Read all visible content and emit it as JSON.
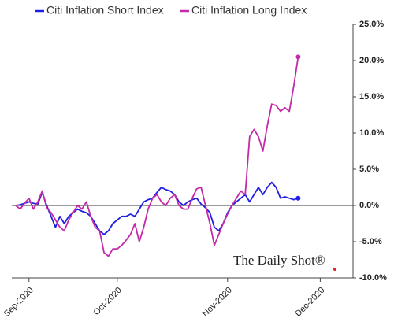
{
  "chart_data": {
    "type": "line",
    "watermark": "The Daily Shot®",
    "categories": [
      null,
      null,
      null,
      "Sep-2020",
      null,
      null,
      null,
      null,
      null,
      null,
      null,
      null,
      null,
      null,
      null,
      null,
      null,
      null,
      null,
      null,
      null,
      null,
      null,
      "Oct-2020",
      null,
      null,
      null,
      null,
      null,
      null,
      null,
      null,
      null,
      null,
      null,
      null,
      null,
      null,
      null,
      null,
      null,
      null,
      null,
      null,
      null,
      null,
      null,
      null,
      "Nov-2020",
      null,
      null,
      null,
      null,
      null,
      null,
      null,
      null,
      null,
      null,
      null,
      null,
      null,
      null,
      null,
      null,
      null,
      null,
      null,
      null,
      "Dec-2020"
    ],
    "series": [
      {
        "name": "Citi Inflation Short Index",
        "color": "#1f1fe6",
        "axis": "y2",
        "values": [
          0,
          0.1,
          0.3,
          0.5,
          0.3,
          0.2,
          1.8,
          0,
          -1.5,
          -3,
          -1.5,
          -2.5,
          -1.5,
          -1,
          -0.5,
          -0.8,
          -1,
          -1.5,
          -2.5,
          -3.5,
          -4,
          -3.5,
          -2.5,
          -2,
          -1.5,
          -1.5,
          -1.2,
          -1.5,
          -0.5,
          0.5,
          0.8,
          1,
          1.8,
          2.5,
          2.2,
          2,
          1.5,
          0.5,
          0,
          0.5,
          0.8,
          1,
          0.2,
          -0.3,
          -1,
          -3,
          -3.5,
          -2.5,
          -1,
          0,
          0.5,
          1,
          1.5,
          0.5,
          1.5,
          2.5,
          1.5,
          2.5,
          3.2,
          2.5,
          1,
          1.2,
          1,
          0.8,
          1,
          null,
          null,
          null,
          null,
          null
        ]
      },
      {
        "name": "Citi Inflation Long Index",
        "color": "#c42aa8",
        "axis": "y2",
        "values": [
          0,
          -0.5,
          0.3,
          1,
          -0.5,
          0.5,
          2,
          -0.3,
          -1,
          -2,
          -3,
          -3.5,
          -2,
          -1,
          0,
          -0.5,
          0.5,
          -1.5,
          -3,
          -3.5,
          -6.5,
          -7,
          -6,
          -6,
          -5.5,
          -4.8,
          -4,
          -2.5,
          -5,
          -3,
          -0.5,
          1,
          1.5,
          0.5,
          0,
          1,
          1.5,
          0,
          -0.5,
          -0.5,
          1,
          2.3,
          2.5,
          0,
          -2.5,
          -5.5,
          -4,
          -2.5,
          -1.2,
          0,
          1,
          2,
          1.5,
          9.5,
          10.5,
          9.5,
          7.5,
          11,
          14,
          13.8,
          13,
          13.5,
          13,
          16.5,
          20.5,
          null,
          null,
          null,
          null,
          null
        ]
      }
    ],
    "y2lim": [
      -10,
      25
    ],
    "y2ticks": [
      {
        "value": -10,
        "label": "-10.0%"
      },
      {
        "value": -5,
        "label": "-5.0%"
      },
      {
        "value": 0,
        "label": "0.0%"
      },
      {
        "value": 5,
        "label": "5.0%"
      },
      {
        "value": 10,
        "label": "10.0%"
      },
      {
        "value": 15,
        "label": "15.0%"
      },
      {
        "value": 20,
        "label": "20.0%"
      },
      {
        "value": 25,
        "label": "25.0%"
      }
    ],
    "legend": "top"
  }
}
